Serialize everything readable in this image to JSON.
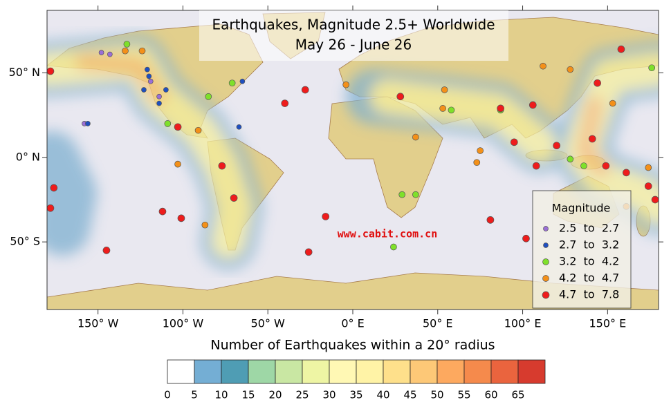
{
  "chart_data": {
    "type": "map",
    "title": "Earthquakes, Magnitude 2.5+ Worldwide",
    "subtitle": "May 26 - June 26",
    "watermark": "www.cabit.com.cn",
    "xlim": [
      -180,
      180
    ],
    "ylim": [
      -90,
      87
    ],
    "xticks": [
      {
        "value": -150,
        "label": "150° W"
      },
      {
        "value": -100,
        "label": "100° W"
      },
      {
        "value": -50,
        "label": "50° W"
      },
      {
        "value": 0,
        "label": "0° E"
      },
      {
        "value": 50,
        "label": "50° E"
      },
      {
        "value": 100,
        "label": "100° E"
      },
      {
        "value": 150,
        "label": "150° E"
      }
    ],
    "yticks": [
      {
        "value": 50,
        "label": "50° N"
      },
      {
        "value": 0,
        "label": "0° N"
      },
      {
        "value": -50,
        "label": "50° S"
      }
    ],
    "legend_title": "Magnitude",
    "series": [
      {
        "name": "2.5  to  2.7",
        "color": "#9a6fd6",
        "x": [
          -148,
          -143,
          -158,
          -119,
          -114
        ],
        "y": [
          62,
          61,
          20,
          45,
          36
        ]
      },
      {
        "name": "2.7  to  3.2",
        "color": "#1f4fbf",
        "x": [
          -120,
          -123,
          -114,
          -121,
          -67,
          -156,
          -65,
          -110
        ],
        "y": [
          48,
          40,
          32,
          52,
          18,
          20,
          45,
          40
        ]
      },
      {
        "name": "3.2  to  4.2",
        "color": "#7fe02a",
        "x": [
          -133,
          -109,
          -85,
          -71,
          24,
          29,
          37,
          176,
          58,
          87,
          128,
          136
        ],
        "y": [
          67,
          20,
          36,
          44,
          -53,
          -22,
          -22,
          53,
          28,
          28,
          -1,
          -5
        ]
      },
      {
        "name": "4.2  to  4.7",
        "color": "#f39019",
        "x": [
          -124,
          -134,
          -91,
          -103,
          -87,
          -4,
          53,
          75,
          73,
          174,
          161,
          153,
          112,
          128,
          54,
          37
        ],
        "y": [
          63,
          63,
          16,
          -4,
          -40,
          43,
          29,
          4,
          -3,
          -6,
          -29,
          32,
          54,
          52,
          40,
          12
        ]
      },
      {
        "name": "4.7  to  7.8",
        "color": "#ee1c1c",
        "x": [
          -28,
          -40,
          -145,
          -112,
          -101,
          -16,
          -26,
          81,
          102,
          106,
          158,
          144,
          141,
          149,
          161,
          174,
          178,
          120,
          108,
          95,
          28,
          87,
          -178,
          -176,
          -178,
          -103,
          -77,
          -70
        ],
        "y": [
          40,
          32,
          -55,
          -32,
          -36,
          -35,
          -56,
          -37,
          -48,
          31,
          64,
          44,
          11,
          -5,
          -9,
          -17,
          -25,
          7,
          -5,
          9,
          36,
          29,
          51,
          -18,
          -30,
          18,
          -5,
          -24
        ]
      }
    ],
    "colorbar": {
      "title": "Number of Earthquakes within a 20° radius",
      "ticks": [
        0,
        5,
        10,
        15,
        20,
        25,
        30,
        35,
        40,
        45,
        50,
        55,
        60,
        65
      ],
      "colors": [
        "#ffffff",
        "#74aed4",
        "#4f9db4",
        "#9ed7a6",
        "#c9e7a3",
        "#eef5a4",
        "#fff8b4",
        "#fff3a6",
        "#fee08b",
        "#fdc877",
        "#fda95f",
        "#f58a4c",
        "#ea643e",
        "#d73b2e"
      ]
    }
  }
}
